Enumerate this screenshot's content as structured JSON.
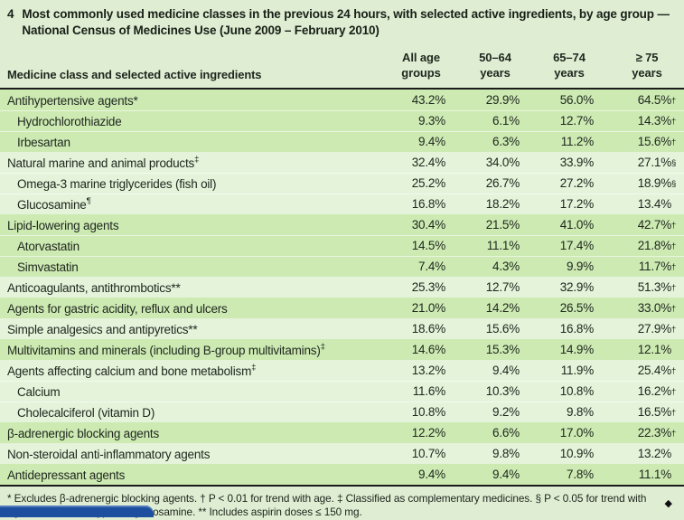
{
  "title": {
    "number": "4",
    "text": "Most commonly used medicine classes in the previous 24 hours, with selected active ingredients, by age group — National Census of Medicines Use (June 2009 – February 2010)"
  },
  "table": {
    "row_header": "Medicine class and selected active ingredients",
    "col_headers": [
      "All age groups",
      "50–64 years",
      "65–74 years",
      "≥ 75 years"
    ],
    "rows": [
      {
        "label": "Antihypertensive agents*",
        "sup": "",
        "indent": false,
        "band": "g",
        "values": [
          "43.2%",
          "29.9%",
          "56.0%",
          "64.5%"
        ],
        "marks": [
          "",
          "",
          "",
          "†"
        ]
      },
      {
        "label": "Hydrochlorothiazide",
        "sup": "",
        "indent": true,
        "band": "g",
        "values": [
          "9.3%",
          "6.1%",
          "12.7%",
          "14.3%"
        ],
        "marks": [
          "",
          "",
          "",
          "†"
        ]
      },
      {
        "label": "Irbesartan",
        "sup": "",
        "indent": true,
        "band": "g",
        "values": [
          "9.4%",
          "6.3%",
          "11.2%",
          "15.6%"
        ],
        "marks": [
          "",
          "",
          "",
          "†"
        ]
      },
      {
        "label": "Natural marine and animal products",
        "sup": "‡",
        "indent": false,
        "band": "p",
        "values": [
          "32.4%",
          "34.0%",
          "33.9%",
          "27.1%"
        ],
        "marks": [
          "",
          "",
          "",
          "§"
        ]
      },
      {
        "label": "Omega-3 marine triglycerides (fish oil)",
        "sup": "",
        "indent": true,
        "band": "p",
        "values": [
          "25.2%",
          "26.7%",
          "27.2%",
          "18.9%"
        ],
        "marks": [
          "",
          "",
          "",
          "§"
        ]
      },
      {
        "label": "Glucosamine",
        "sup": "¶",
        "indent": true,
        "band": "p",
        "values": [
          "16.8%",
          "18.2%",
          "17.2%",
          "13.4%"
        ],
        "marks": [
          "",
          "",
          "",
          ""
        ]
      },
      {
        "label": "Lipid-lowering agents",
        "sup": "",
        "indent": false,
        "band": "g",
        "values": [
          "30.4%",
          "21.5%",
          "41.0%",
          "42.7%"
        ],
        "marks": [
          "",
          "",
          "",
          "†"
        ]
      },
      {
        "label": "Atorvastatin",
        "sup": "",
        "indent": true,
        "band": "g",
        "values": [
          "14.5%",
          "11.1%",
          "17.4%",
          "21.8%"
        ],
        "marks": [
          "",
          "",
          "",
          "†"
        ]
      },
      {
        "label": "Simvastatin",
        "sup": "",
        "indent": true,
        "band": "g",
        "values": [
          "7.4%",
          "4.3%",
          "9.9%",
          "11.7%"
        ],
        "marks": [
          "",
          "",
          "",
          "†"
        ]
      },
      {
        "label": "Anticoagulants, antithrombotics**",
        "sup": "",
        "indent": false,
        "band": "p",
        "values": [
          "25.3%",
          "12.7%",
          "32.9%",
          "51.3%"
        ],
        "marks": [
          "",
          "",
          "",
          "†"
        ]
      },
      {
        "label": "Agents for gastric acidity, reflux and ulcers",
        "sup": "",
        "indent": false,
        "band": "g",
        "values": [
          "21.0%",
          "14.2%",
          "26.5%",
          "33.0%"
        ],
        "marks": [
          "",
          "",
          "",
          "†"
        ]
      },
      {
        "label": "Simple analgesics and antipyretics**",
        "sup": "",
        "indent": false,
        "band": "p",
        "values": [
          "18.6%",
          "15.6%",
          "16.8%",
          "27.9%"
        ],
        "marks": [
          "",
          "",
          "",
          "†"
        ]
      },
      {
        "label": "Multivitamins and minerals (including B-group multivitamins)",
        "sup": "‡",
        "indent": false,
        "band": "g",
        "values": [
          "14.6%",
          "15.3%",
          "14.9%",
          "12.1%"
        ],
        "marks": [
          "",
          "",
          "",
          ""
        ]
      },
      {
        "label": "Agents affecting calcium and bone metabolism",
        "sup": "‡",
        "indent": false,
        "band": "p",
        "values": [
          "13.2%",
          "9.4%",
          "11.9%",
          "25.4%"
        ],
        "marks": [
          "",
          "",
          "",
          "†"
        ]
      },
      {
        "label": "Calcium",
        "sup": "",
        "indent": true,
        "band": "p",
        "values": [
          "11.6%",
          "10.3%",
          "10.8%",
          "16.2%"
        ],
        "marks": [
          "",
          "",
          "",
          "†"
        ]
      },
      {
        "label": "Cholecalciferol (vitamin D)",
        "sup": "",
        "indent": true,
        "band": "p",
        "values": [
          "10.8%",
          "9.2%",
          "9.8%",
          "16.5%"
        ],
        "marks": [
          "",
          "",
          "",
          "†"
        ]
      },
      {
        "label": "β-adrenergic blocking agents",
        "sup": "",
        "indent": false,
        "band": "g",
        "values": [
          "12.2%",
          "6.6%",
          "17.0%",
          "22.3%"
        ],
        "marks": [
          "",
          "",
          "",
          "†"
        ]
      },
      {
        "label": "Non-steroidal anti-inflammatory agents",
        "sup": "",
        "indent": false,
        "band": "p",
        "values": [
          "10.7%",
          "9.8%",
          "10.9%",
          "13.2%"
        ],
        "marks": [
          "",
          "",
          "",
          ""
        ]
      },
      {
        "label": "Antidepressant agents",
        "sup": "",
        "indent": false,
        "band": "g",
        "values": [
          "9.4%",
          "9.4%",
          "7.8%",
          "11.1%"
        ],
        "marks": [
          "",
          "",
          "",
          ""
        ]
      }
    ]
  },
  "footnote": "* Excludes β-adrenergic blocking agents. † P < 0.01 for trend with age. ‡ Classified as complementary medicines. § P < 0.05 for trend with age. ¶ Includes all types of glucosamine. ** Includes aspirin doses ≤ 150 mg.",
  "end_marker": "◆",
  "colors": {
    "page_bg": "#dfeed3",
    "band_green": "#cdeab3",
    "band_pale": "#e4f3da",
    "rule": "#1b1b1b",
    "accent_blue": "#1d4f9e",
    "text": "#20281f"
  }
}
